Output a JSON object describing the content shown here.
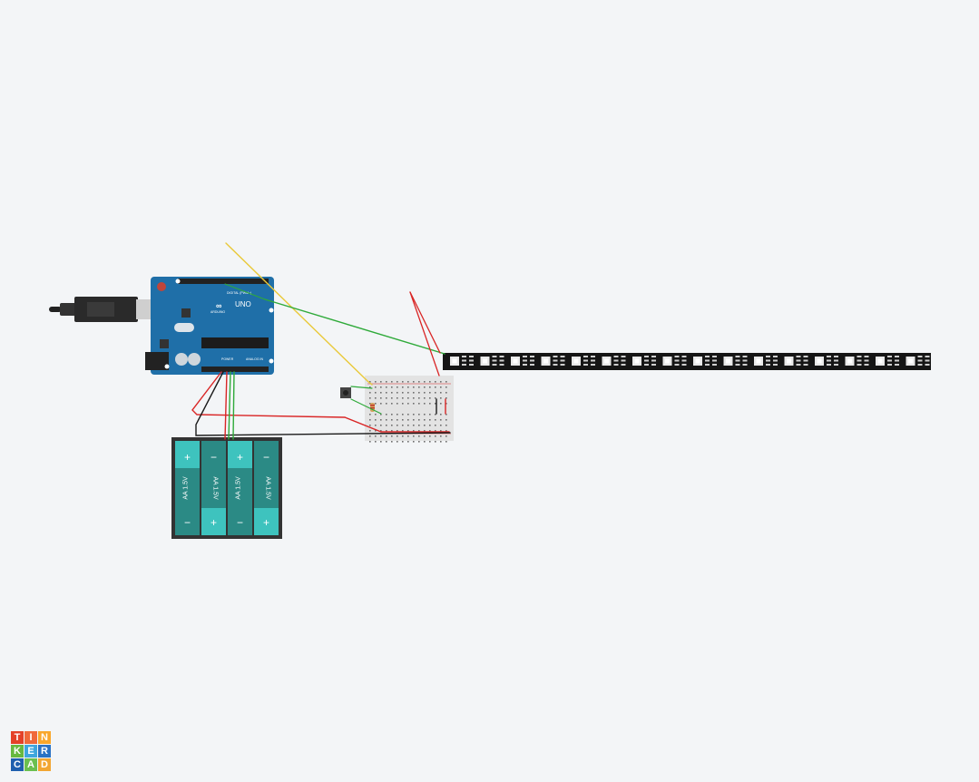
{
  "app": {
    "name": "Tinkercad"
  },
  "arduino": {
    "brand": "ARDUINO",
    "model": "UNO",
    "digital_label": "DIGITAL (PWM~)",
    "power_label": "POWER",
    "analog_label": "ANALOG IN"
  },
  "battery_pack": {
    "cell_label": "AA 1.5V",
    "plus": "+",
    "minus": "−"
  },
  "logo": {
    "letters": [
      "T",
      "I",
      "N",
      "K",
      "E",
      "R",
      "C",
      "A",
      "D"
    ],
    "colors": [
      "#e44128",
      "#f0693a",
      "#f9a72b",
      "#67b83f",
      "#3ea6dd",
      "#2a72c4",
      "#1f5fae",
      "#6bbf4f",
      "#f2a632"
    ]
  },
  "colors": {
    "background": "#f3f5f7",
    "board": "#1f6fa8",
    "battery": "#2b8a85",
    "wire_red": "#d92626",
    "wire_black": "#1a1a1a",
    "wire_green": "#2faa3a",
    "wire_yellow": "#e9c93a",
    "strip": "#151515"
  }
}
